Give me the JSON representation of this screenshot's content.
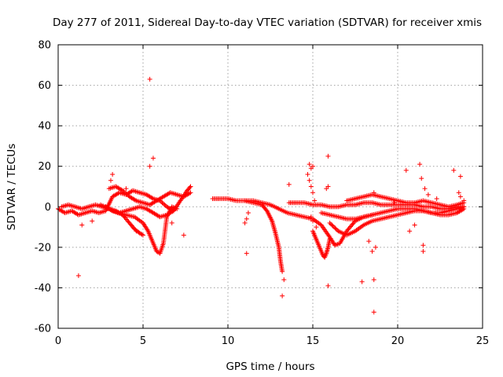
{
  "chart_data": {
    "type": "scatter",
    "title": "Day 277 of 2011, Sidereal Day-to-day VTEC variation (SDTVAR) for receiver xmis",
    "xlabel": "GPS time / hours",
    "ylabel": "SDTVAR / TECUs",
    "xlim": [
      0,
      25
    ],
    "ylim": [
      -60,
      80
    ],
    "xticks": [
      0,
      5,
      10,
      15,
      20,
      25
    ],
    "yticks": [
      -60,
      -40,
      -20,
      0,
      20,
      40,
      60,
      80
    ],
    "grid": true,
    "marker": "+",
    "color": "#ff0000",
    "segments": [
      {
        "x": [
          0.0,
          0.4,
          0.8,
          1.2,
          1.6,
          2.0,
          2.4,
          2.8,
          3.2,
          3.6,
          4.0,
          4.4,
          4.8,
          5.2,
          5.6,
          6.0,
          6.4,
          6.8,
          7.2,
          7.6,
          7.8
        ],
        "y": [
          -1,
          -3,
          -2,
          -4,
          -3,
          -2,
          -3,
          -2,
          5,
          7,
          6,
          8,
          7,
          6,
          4,
          3,
          0,
          -2,
          3,
          8,
          10
        ]
      },
      {
        "x": [
          0.2,
          0.6,
          1.0,
          1.4,
          1.8,
          2.2,
          2.6,
          3.0,
          3.4,
          3.8,
          4.2,
          4.5,
          4.8,
          5.0
        ],
        "y": [
          0,
          1,
          0,
          -1,
          0,
          1,
          0,
          -1,
          -2,
          -4,
          -8,
          -11,
          -13,
          -14
        ]
      },
      {
        "x": [
          2.5,
          3.0,
          3.5,
          4.0,
          4.5,
          5.0,
          5.3,
          5.6,
          5.8,
          6.0,
          6.2,
          6.4,
          6.7,
          7.0
        ],
        "y": [
          1,
          -1,
          -3,
          -4,
          -5,
          -8,
          -12,
          -18,
          -22,
          -23,
          -18,
          -5,
          0,
          -1
        ]
      },
      {
        "x": [
          2.8,
          3.2,
          3.6,
          4.0,
          4.4,
          4.8,
          5.2,
          5.6,
          6.0,
          6.4,
          6.8
        ],
        "y": [
          0,
          -2,
          -3,
          -2,
          -1,
          0,
          -1,
          -3,
          -5,
          -4,
          -2
        ]
      },
      {
        "x": [
          3.0,
          3.4,
          3.8,
          4.2,
          4.6,
          5.0,
          5.4,
          5.8,
          6.2,
          6.6,
          7.0,
          7.4,
          7.8
        ],
        "y": [
          9,
          10,
          8,
          5,
          3,
          2,
          1,
          3,
          5,
          7,
          6,
          5,
          7
        ]
      },
      {
        "x": [
          9.1,
          9.5,
          10.0,
          10.5,
          11.0,
          11.5,
          12.0,
          12.3,
          12.6,
          12.8,
          13.0,
          13.1,
          13.2
        ],
        "y": [
          4,
          4,
          4,
          3,
          3,
          2,
          1,
          -2,
          -7,
          -13,
          -20,
          -27,
          -32
        ]
      },
      {
        "x": [
          11.0,
          11.5,
          12.0,
          12.5,
          13.0,
          13.5,
          14.0,
          14.5,
          15.0,
          15.5,
          16.0,
          16.3,
          16.6,
          17.0,
          17.5,
          18.0,
          18.5
        ],
        "y": [
          3,
          3,
          2,
          1,
          -1,
          -3,
          -4,
          -5,
          -6,
          -9,
          -15,
          -19,
          -18,
          -12,
          -7,
          -5,
          -4
        ]
      },
      {
        "x": [
          13.6,
          14.0,
          14.5,
          15.0,
          15.5,
          16.0,
          16.5,
          17.0,
          17.5,
          18.0,
          18.5,
          19.0,
          19.5,
          20.0,
          20.5,
          21.0,
          21.5,
          22.0,
          22.5,
          23.0,
          23.5,
          23.9
        ],
        "y": [
          2,
          2,
          2,
          1,
          1,
          0,
          0,
          1,
          1,
          2,
          2,
          1,
          1,
          1,
          1,
          1,
          0,
          0,
          -1,
          -1,
          0,
          0
        ]
      },
      {
        "x": [
          15.5,
          16.0,
          16.5,
          17.0,
          17.5,
          18.0,
          18.5,
          19.0,
          19.5,
          20.0,
          20.5,
          21.0,
          21.5,
          22.0,
          22.5,
          23.0,
          23.5,
          23.9
        ],
        "y": [
          -3,
          -4,
          -5,
          -6,
          -6,
          -5,
          -4,
          -3,
          -2,
          -1,
          -1,
          -1,
          -2,
          -3,
          -3,
          -2,
          -1,
          0
        ]
      },
      {
        "x": [
          16.0,
          16.5,
          17.0,
          17.5,
          18.0,
          18.5,
          19.0,
          19.5,
          20.0,
          20.5,
          21.0,
          21.5,
          22.0,
          22.5,
          23.0,
          23.5,
          23.9
        ],
        "y": [
          -8,
          -12,
          -14,
          -12,
          -9,
          -7,
          -6,
          -5,
          -4,
          -3,
          -2,
          -2,
          -3,
          -4,
          -4,
          -3,
          -1
        ]
      },
      {
        "x": [
          17.0,
          17.5,
          18.0,
          18.5,
          19.0,
          19.5,
          20.0,
          20.5,
          21.0,
          21.5,
          22.0,
          22.5,
          23.0,
          23.5,
          23.9
        ],
        "y": [
          3,
          4,
          5,
          6,
          5,
          4,
          3,
          2,
          2,
          3,
          2,
          1,
          0,
          1,
          2
        ]
      },
      {
        "x": [
          15.0,
          15.2,
          15.4,
          15.5,
          15.6,
          15.7,
          15.8,
          15.9,
          16.0
        ],
        "y": [
          -12,
          -16,
          -20,
          -22,
          -24,
          -25,
          -23,
          -20,
          -16
        ]
      }
    ],
    "points": [
      {
        "x": 5.4,
        "y": 63
      },
      {
        "x": 5.6,
        "y": 24
      },
      {
        "x": 5.4,
        "y": 20
      },
      {
        "x": 3.2,
        "y": 16
      },
      {
        "x": 1.2,
        "y": -34
      },
      {
        "x": 1.4,
        "y": -9
      },
      {
        "x": 2.0,
        "y": -7
      },
      {
        "x": 3.1,
        "y": 13
      },
      {
        "x": 4.0,
        "y": 9
      },
      {
        "x": 7.4,
        "y": -14
      },
      {
        "x": 6.7,
        "y": -8
      },
      {
        "x": 4.6,
        "y": -12
      },
      {
        "x": 11.1,
        "y": -23
      },
      {
        "x": 11.0,
        "y": -8
      },
      {
        "x": 11.1,
        "y": -6
      },
      {
        "x": 11.2,
        "y": -3
      },
      {
        "x": 13.2,
        "y": -44
      },
      {
        "x": 13.3,
        "y": -36
      },
      {
        "x": 13.6,
        "y": 11
      },
      {
        "x": 14.8,
        "y": 21
      },
      {
        "x": 14.9,
        "y": 19
      },
      {
        "x": 15.0,
        "y": 20
      },
      {
        "x": 14.7,
        "y": 16
      },
      {
        "x": 14.8,
        "y": 13
      },
      {
        "x": 14.9,
        "y": 10
      },
      {
        "x": 15.0,
        "y": 7
      },
      {
        "x": 15.1,
        "y": 3
      },
      {
        "x": 14.9,
        "y": -5
      },
      {
        "x": 15.0,
        "y": -7
      },
      {
        "x": 15.2,
        "y": -10
      },
      {
        "x": 15.9,
        "y": 25
      },
      {
        "x": 15.8,
        "y": 9
      },
      {
        "x": 15.9,
        "y": 10
      },
      {
        "x": 15.9,
        "y": -39
      },
      {
        "x": 17.9,
        "y": -37
      },
      {
        "x": 18.6,
        "y": -36
      },
      {
        "x": 18.6,
        "y": -52
      },
      {
        "x": 18.5,
        "y": -22
      },
      {
        "x": 18.7,
        "y": -20
      },
      {
        "x": 18.3,
        "y": -17
      },
      {
        "x": 18.6,
        "y": 7
      },
      {
        "x": 20.5,
        "y": 18
      },
      {
        "x": 21.3,
        "y": 21
      },
      {
        "x": 21.5,
        "y": -19
      },
      {
        "x": 21.5,
        "y": -22
      },
      {
        "x": 20.7,
        "y": -12
      },
      {
        "x": 21.0,
        "y": -9
      },
      {
        "x": 21.6,
        "y": 9
      },
      {
        "x": 21.4,
        "y": 14
      },
      {
        "x": 23.3,
        "y": 18
      },
      {
        "x": 23.7,
        "y": 15
      },
      {
        "x": 23.6,
        "y": 7
      },
      {
        "x": 23.7,
        "y": 5
      },
      {
        "x": 23.9,
        "y": 3
      },
      {
        "x": 22.3,
        "y": 4
      },
      {
        "x": 21.8,
        "y": 6
      },
      {
        "x": 19.8,
        "y": 2
      }
    ]
  }
}
